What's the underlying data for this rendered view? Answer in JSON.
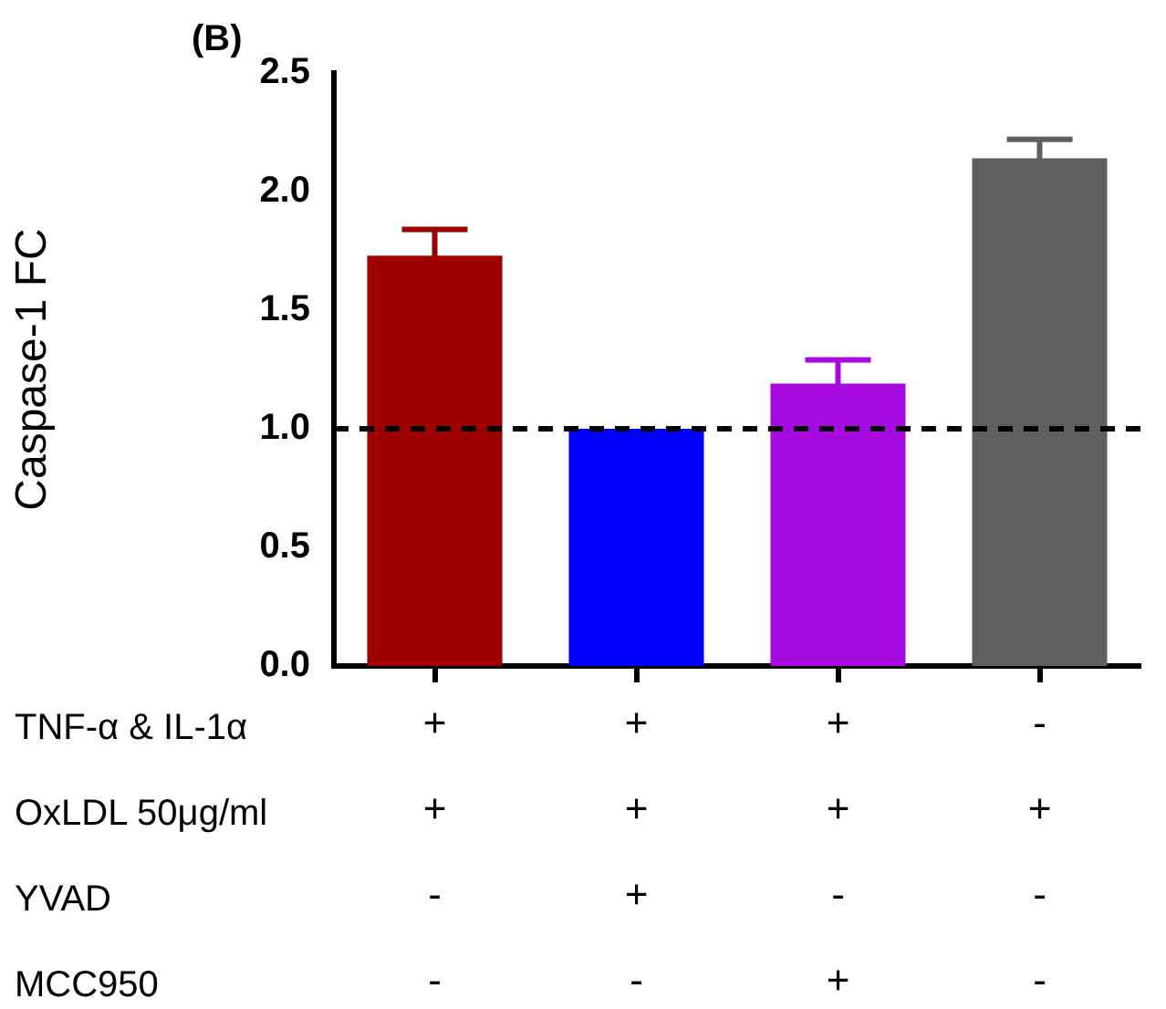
{
  "chart_data": {
    "type": "bar",
    "title": "(B)",
    "ylabel": "Caspase-1 FC",
    "categories": [
      "+\n+\n-\n-",
      "+\n+\n+\n-",
      "+\n+\n-\n+",
      "-\n+\n-\n-"
    ],
    "values": [
      1.73,
      1.0,
      1.19,
      2.14
    ],
    "colors": [
      "#9e0000",
      "#0000ff",
      "#a70ae0",
      "#5f5f5f"
    ],
    "errors": [
      0.11,
      null,
      0.1,
      0.08
    ],
    "ylim": [
      0,
      2.5
    ],
    "yticks": [
      {
        "value": 0,
        "label": "0.0"
      },
      {
        "value": 0.5,
        "label": "0.5"
      },
      {
        "value": 1,
        "label": "1.0"
      },
      {
        "value": 1.5,
        "label": "1.5"
      },
      {
        "value": 2,
        "label": "2.0"
      },
      {
        "value": 2.5,
        "label": "2.5"
      }
    ],
    "ref_lines": [
      {
        "axis": "y",
        "value": 1,
        "color": "#000000",
        "line_style": "dashed"
      }
    ],
    "annotations": [
      "TNF-α & IL-1α",
      "OxLDL 50μg/ml",
      "YVAD",
      "MCC950"
    ],
    "grid": false,
    "legend": false
  }
}
